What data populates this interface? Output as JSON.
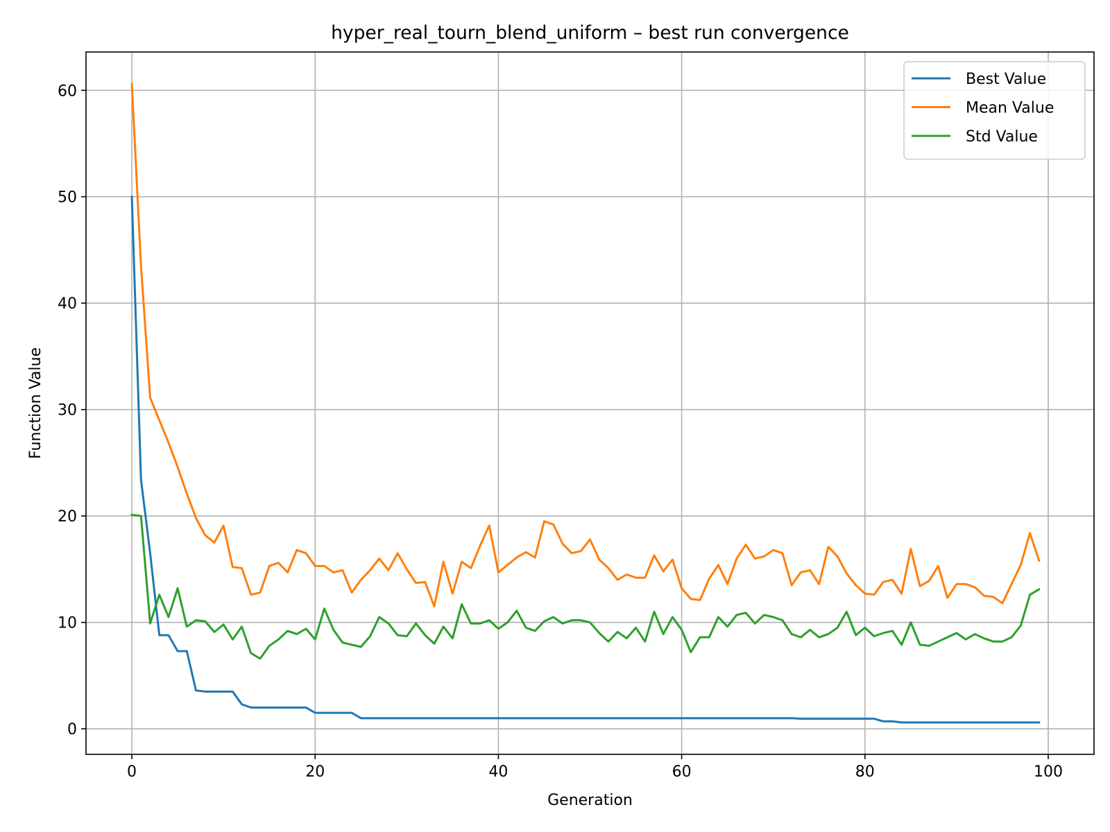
{
  "chart_data": {
    "type": "line",
    "title": "hyper_real_tourn_blend_uniform – best run convergence",
    "xlabel": "Generation",
    "ylabel": "Function Value",
    "xlim": [
      -5,
      105
    ],
    "ylim": [
      -2.4,
      63.6
    ],
    "xticks": [
      0,
      20,
      40,
      60,
      80,
      100
    ],
    "yticks": [
      0,
      10,
      20,
      30,
      40,
      50,
      60
    ],
    "grid": true,
    "legend_position": "top-right",
    "x": [
      0,
      1,
      2,
      3,
      4,
      5,
      6,
      7,
      8,
      9,
      10,
      11,
      12,
      13,
      14,
      15,
      16,
      17,
      18,
      19,
      20,
      21,
      22,
      23,
      24,
      25,
      26,
      27,
      28,
      29,
      30,
      31,
      32,
      33,
      34,
      35,
      36,
      37,
      38,
      39,
      40,
      41,
      42,
      43,
      44,
      45,
      46,
      47,
      48,
      49,
      50,
      51,
      52,
      53,
      54,
      55,
      56,
      57,
      58,
      59,
      60,
      61,
      62,
      63,
      64,
      65,
      66,
      67,
      68,
      69,
      70,
      71,
      72,
      73,
      74,
      75,
      76,
      77,
      78,
      79,
      80,
      81,
      82,
      83,
      84,
      85,
      86,
      87,
      88,
      89,
      90,
      91,
      92,
      93,
      94,
      95,
      96,
      97,
      98,
      99
    ],
    "series": [
      {
        "name": "Best Value",
        "color": "#1f77b4",
        "values": [
          50.0,
          23.4,
          16.5,
          8.8,
          8.8,
          7.3,
          7.3,
          3.6,
          3.5,
          3.5,
          3.5,
          3.5,
          2.3,
          2.0,
          2.0,
          2.0,
          2.0,
          2.0,
          2.0,
          2.0,
          1.5,
          1.5,
          1.5,
          1.5,
          1.5,
          1.0,
          1.0,
          1.0,
          1.0,
          1.0,
          1.0,
          1.0,
          1.0,
          1.0,
          1.0,
          1.0,
          1.0,
          1.0,
          1.0,
          1.0,
          1.0,
          1.0,
          1.0,
          1.0,
          1.0,
          1.0,
          1.0,
          1.0,
          1.0,
          1.0,
          1.0,
          1.0,
          1.0,
          1.0,
          1.0,
          1.0,
          1.0,
          1.0,
          1.0,
          1.0,
          1.0,
          1.0,
          1.0,
          1.0,
          1.0,
          1.0,
          1.0,
          1.0,
          1.0,
          1.0,
          1.0,
          1.0,
          1.0,
          0.95,
          0.95,
          0.95,
          0.95,
          0.95,
          0.95,
          0.95,
          0.95,
          0.95,
          0.7,
          0.7,
          0.6,
          0.6,
          0.6,
          0.6,
          0.6,
          0.6,
          0.6,
          0.6,
          0.6,
          0.6,
          0.6,
          0.6,
          0.6,
          0.6,
          0.6,
          0.6
        ]
      },
      {
        "name": "Mean Value",
        "color": "#ff7f0e",
        "values": [
          60.6,
          43.5,
          31.1,
          29.0,
          26.9,
          24.6,
          22.1,
          19.8,
          18.2,
          17.5,
          19.1,
          15.2,
          15.1,
          12.6,
          12.8,
          15.3,
          15.6,
          14.7,
          16.8,
          16.5,
          15.3,
          15.3,
          14.7,
          14.9,
          12.8,
          14.0,
          14.9,
          16.0,
          14.9,
          16.5,
          15.0,
          13.7,
          13.8,
          11.5,
          15.7,
          12.7,
          15.7,
          15.1,
          17.2,
          19.1,
          14.7,
          15.4,
          16.1,
          16.6,
          16.1,
          19.5,
          19.2,
          17.4,
          16.5,
          16.7,
          17.8,
          15.9,
          15.1,
          14.0,
          14.5,
          14.2,
          14.2,
          16.3,
          14.8,
          15.9,
          13.2,
          12.2,
          12.1,
          14.1,
          15.4,
          13.6,
          16.0,
          17.3,
          16.0,
          16.2,
          16.8,
          16.5,
          13.5,
          14.7,
          14.9,
          13.6,
          17.1,
          16.2,
          14.6,
          13.5,
          12.7,
          12.6,
          13.8,
          14.0,
          12.7,
          16.9,
          13.4,
          13.9,
          15.3,
          12.3,
          13.6,
          13.6,
          13.3,
          12.5,
          12.4,
          11.8,
          13.6,
          15.4,
          18.4,
          15.8
        ]
      },
      {
        "name": "Std Value",
        "color": "#2ca02c",
        "values": [
          20.1,
          20.0,
          9.9,
          12.6,
          10.5,
          13.2,
          9.6,
          10.2,
          10.1,
          9.1,
          9.8,
          8.4,
          9.6,
          7.1,
          6.6,
          7.8,
          8.4,
          9.2,
          8.9,
          9.4,
          8.4,
          11.3,
          9.3,
          8.1,
          7.9,
          7.7,
          8.7,
          10.5,
          9.9,
          8.8,
          8.7,
          9.9,
          8.8,
          8.0,
          9.6,
          8.5,
          11.7,
          9.9,
          9.9,
          10.2,
          9.4,
          10.0,
          11.1,
          9.5,
          9.2,
          10.1,
          10.5,
          9.9,
          10.2,
          10.2,
          10.0,
          9.0,
          8.2,
          9.1,
          8.5,
          9.5,
          8.2,
          11.0,
          8.9,
          10.5,
          9.3,
          7.2,
          8.6,
          8.6,
          10.5,
          9.6,
          10.7,
          10.9,
          9.9,
          10.7,
          10.5,
          10.2,
          8.9,
          8.6,
          9.3,
          8.6,
          8.9,
          9.5,
          11.0,
          8.8,
          9.5,
          8.7,
          9.0,
          9.2,
          7.9,
          10.0,
          7.9,
          7.8,
          8.2,
          8.6,
          9.0,
          8.4,
          8.9,
          8.5,
          8.2,
          8.2,
          8.6,
          9.7,
          12.6,
          13.1
        ]
      }
    ]
  }
}
